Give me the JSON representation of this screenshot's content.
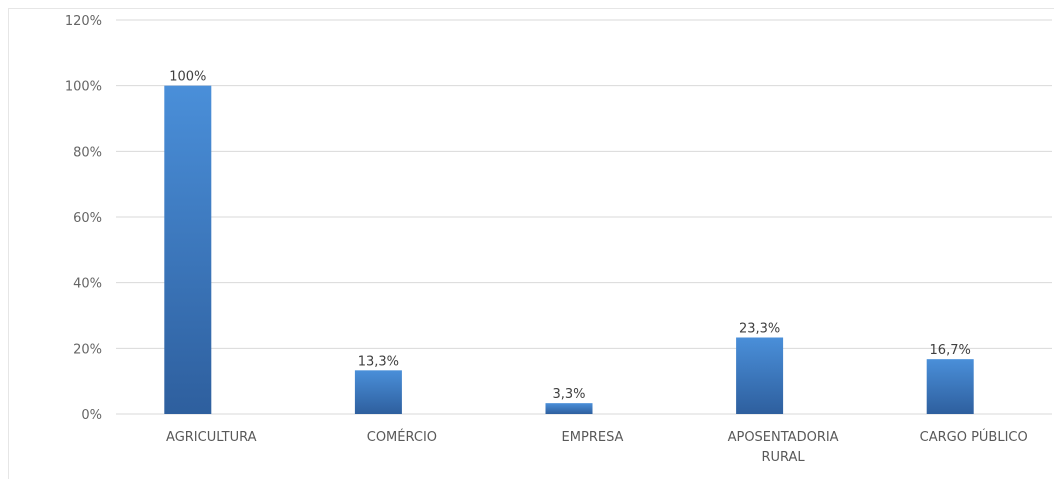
{
  "chart_data": {
    "type": "bar",
    "categories": [
      [
        "AGRICULTURA"
      ],
      [
        "COMÉRCIO"
      ],
      [
        "EMPRESA"
      ],
      [
        "APOSENTADORIA",
        "RURAL"
      ],
      [
        "CARGO PÚBLICO"
      ]
    ],
    "values": [
      100,
      13.3,
      3.3,
      23.3,
      16.7
    ],
    "data_labels": [
      "100%",
      "13,3%",
      "3,3%",
      "23,3%",
      "16,7%"
    ],
    "y_ticks": [
      "0%",
      "20%",
      "40%",
      "60%",
      "80%",
      "100%",
      "120%"
    ],
    "ylim": [
      0,
      120
    ],
    "grid": true,
    "legend": "none",
    "colors": {
      "bar_top": "#4a8fd9",
      "bar_bottom": "#2e5f9e",
      "grid": "#d9d9d9"
    }
  }
}
